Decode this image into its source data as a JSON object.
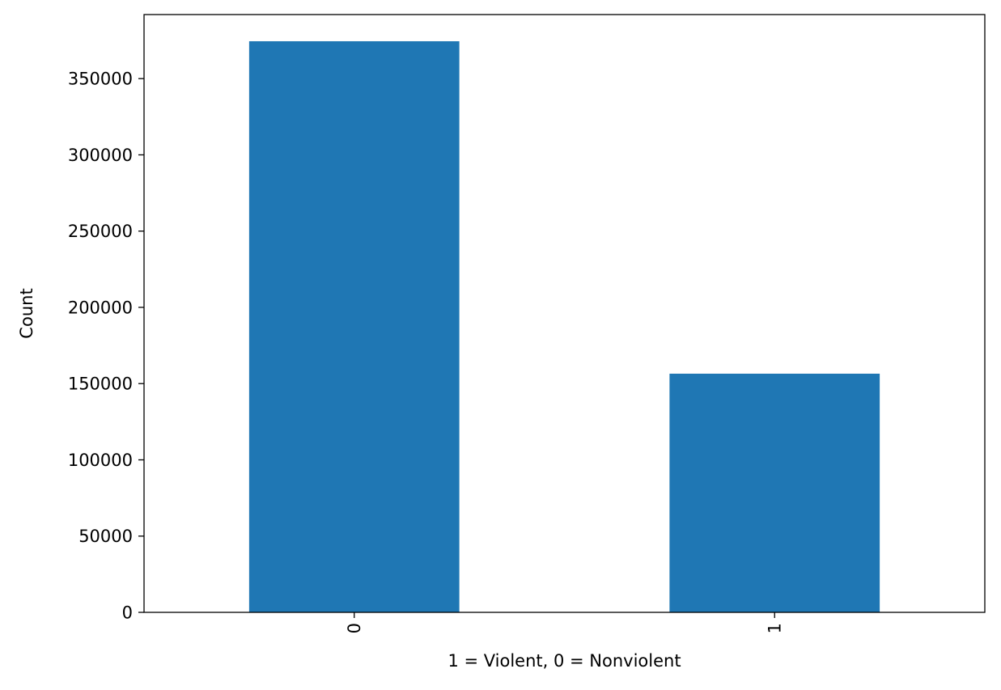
{
  "chart_data": {
    "type": "bar",
    "title": "",
    "xlabel": "1 = Violent, 0 = Nonviolent",
    "ylabel": "Count",
    "categories": [
      "0",
      "1"
    ],
    "values": [
      374500,
      156500
    ],
    "ylim": [
      0,
      392000
    ],
    "yticks": [
      0,
      50000,
      100000,
      150000,
      200000,
      250000,
      300000,
      350000
    ],
    "xtick_rotation": "vertical",
    "grid": false,
    "legend": "none",
    "bar_color": "#1f77b4"
  }
}
